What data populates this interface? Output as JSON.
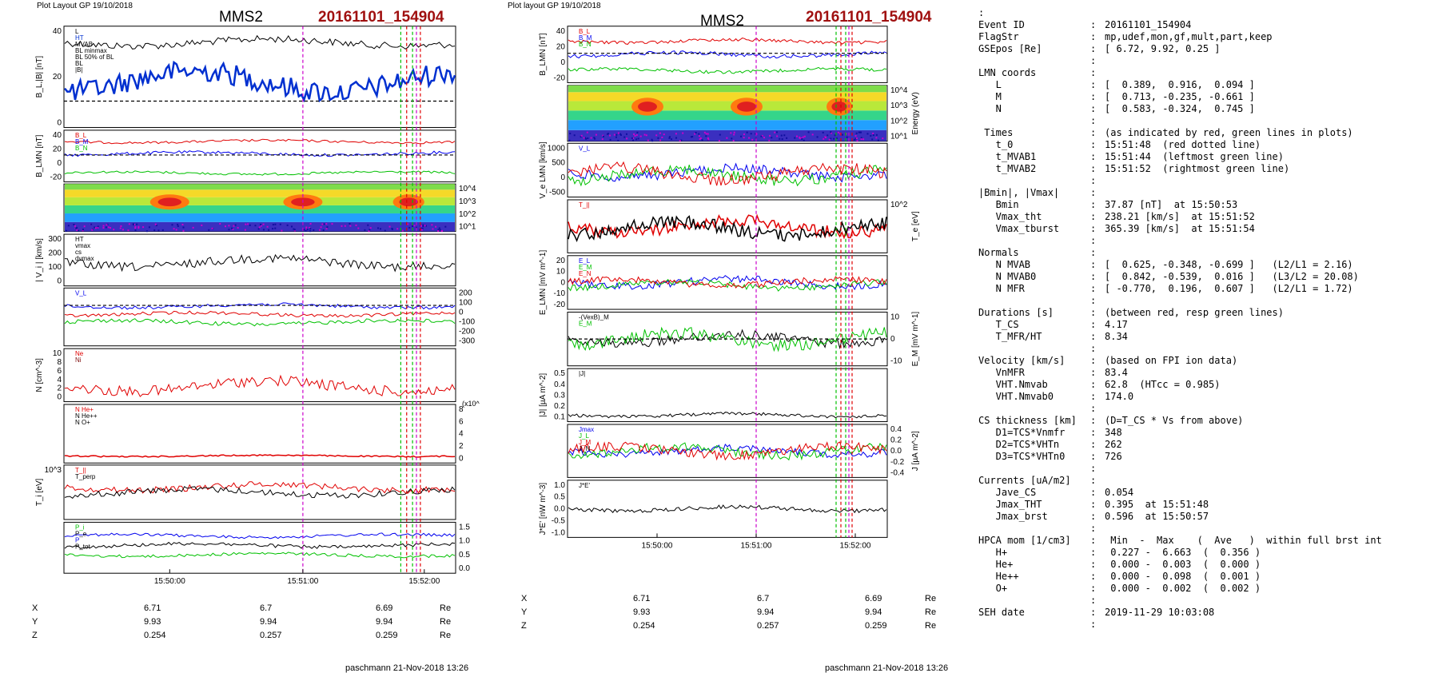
{
  "left": {
    "header_label": "Plot Layout GP 19/10/2018",
    "title": "MMS2",
    "event": "20161101_154904",
    "time_ticks": [
      "15:50:00",
      "15:51:00",
      "15:52:00"
    ],
    "panels": [
      {
        "ylabel": "B_L,|B| [nT]",
        "right": "",
        "ticks": [
          "40",
          "20",
          "0"
        ],
        "legend": [
          "L",
          "HT",
          "MVAB",
          "BL minmax",
          "BL 50% of BL",
          "BL",
          "|B|"
        ]
      },
      {
        "ylabel": "B_LMN [nT]",
        "right": "",
        "ticks": [
          "40",
          "20",
          "0",
          "-20"
        ],
        "legend": [
          "B_L",
          "B_M",
          "B_N"
        ]
      },
      {
        "ylabel": "",
        "right": "Energy (eV)",
        "ticks": [
          "10^4",
          "10^3",
          "10^2",
          "10^1"
        ],
        "legend": []
      },
      {
        "ylabel": "| V_i | [km/s]",
        "right": "",
        "ticks": [
          "300",
          "200",
          "100",
          "0"
        ],
        "legend": [
          "HT",
          "vmax",
          "cs",
          "dvmax"
        ]
      },
      {
        "ylabel": "",
        "right": "V_i LMN [km/s]",
        "ticks": [
          "200",
          "100",
          "0",
          "-100",
          "-200",
          "-300"
        ],
        "legend": [
          "V_L"
        ]
      },
      {
        "ylabel": "N [cm^-3]",
        "right": "",
        "ticks": [
          "10",
          "8",
          "6",
          "4",
          "2",
          "0"
        ],
        "legend": [
          "Ne",
          "Ni"
        ]
      },
      {
        "ylabel": "",
        "right": "N_i [cm^-3]",
        "ticks": [
          "8",
          "6",
          "4",
          "2",
          "0"
        ],
        "legend": [
          "N He+",
          "N He++",
          "N O+"
        ],
        "extra": "(x10^-2)"
      },
      {
        "ylabel": "T_i [eV]",
        "right": "",
        "ticks": [
          "10^3"
        ],
        "legend": [
          "T_||",
          "T_perp"
        ]
      },
      {
        "ylabel": "",
        "right": "P [nPa]",
        "ticks": [
          "1.5",
          "1.0",
          "0.5",
          "0.0"
        ],
        "legend": [
          "P_i",
          "P_e",
          "P",
          "P_tot"
        ]
      }
    ],
    "coords": {
      "labels": [
        "X",
        "Y",
        "Z"
      ],
      "values": [
        [
          "6.71",
          "6.7",
          "6.69"
        ],
        [
          "9.93",
          "9.94",
          "9.94"
        ],
        [
          "0.254",
          "0.257",
          "0.259"
        ]
      ],
      "unit": "Re"
    },
    "footer": "paschmann 21-Nov-2018 13:26"
  },
  "right_plot": {
    "header_label": "Plot layout GP 19/10/2018",
    "title": "MMS2",
    "event": "20161101_154904",
    "time_ticks": [
      "15:50:00",
      "15:51:00",
      "15:52:00"
    ],
    "panels": [
      {
        "ylabel": "B_LMN [nT]",
        "right": "",
        "ticks": [
          "40",
          "20",
          "0",
          "-20"
        ],
        "legend": [
          "B_L",
          "B_M",
          "B_N"
        ]
      },
      {
        "ylabel": "",
        "right": "Energy (eV)",
        "ticks": [
          "10^4",
          "10^3",
          "10^2",
          "10^1"
        ],
        "legend": []
      },
      {
        "ylabel": "V_e LMN [km/s]",
        "right": "",
        "ticks": [
          "1000",
          "500",
          "0",
          "-500"
        ],
        "legend": [
          "V_L"
        ]
      },
      {
        "ylabel": "",
        "right": "T_e [eV]",
        "ticks": [
          "10^2"
        ],
        "legend": [
          "T_||"
        ]
      },
      {
        "ylabel": "E_LMN [mV m^-1]",
        "right": "",
        "ticks": [
          "20",
          "10",
          "0",
          "-10",
          "-20"
        ],
        "legend": [
          "E_L",
          "E_M",
          "E_N"
        ]
      },
      {
        "ylabel": "",
        "right": "E_M [mV m^-1]",
        "ticks": [
          "10",
          "0",
          "-10"
        ],
        "legend": [
          "-(VexB)_M",
          "E_M"
        ]
      },
      {
        "ylabel": "|J| [µA m^-2]",
        "right": "",
        "ticks": [
          "0.5",
          "0.4",
          "0.3",
          "0.2",
          "0.1"
        ],
        "legend": [
          "|J|"
        ]
      },
      {
        "ylabel": "",
        "right": "J [µA m^-2]",
        "ticks": [
          "0.4",
          "0.2",
          "0.0",
          "-0.2",
          "-0.4"
        ],
        "legend": [
          "Jmax",
          "J_L",
          "J_M",
          "J_N"
        ]
      },
      {
        "ylabel": "J*E' [nW m^-3]",
        "right": "",
        "ticks": [
          "1.0",
          "0.5",
          "0.0",
          "-0.5",
          "-1.0"
        ],
        "legend": [
          "J*E'"
        ]
      }
    ],
    "coords": {
      "labels": [
        "X",
        "Y",
        "Z"
      ],
      "values": [
        [
          "6.71",
          "6.7",
          "6.69"
        ],
        [
          "9.93",
          "9.94",
          "9.94"
        ],
        [
          "0.254",
          "0.257",
          "0.259"
        ]
      ],
      "unit": "Re"
    },
    "footer": "paschmann 21-Nov-2018 13:26"
  },
  "info": [
    {
      "l": ":",
      "c": "",
      "v": ""
    },
    {
      "l": "Event ID",
      "c": ":",
      "v": "20161101_154904"
    },
    {
      "l": "FlagStr",
      "c": ":",
      "v": "mp,udef,mon,gf,mult,part,keep"
    },
    {
      "l": "GSEpos [Re]",
      "c": ":",
      "v": "[ 6.72, 9.92, 0.25 ]"
    },
    {
      "l": "",
      "c": ":",
      "v": ""
    },
    {
      "l": "LMN coords",
      "c": ":",
      "v": ""
    },
    {
      "l": "   L",
      "c": ":",
      "v": "[  0.389,  0.916,  0.094 ]"
    },
    {
      "l": "   M",
      "c": ":",
      "v": "[  0.713, -0.235, -0.661 ]"
    },
    {
      "l": "   N",
      "c": ":",
      "v": "[  0.583, -0.324,  0.745 ]"
    },
    {
      "l": "",
      "c": ":",
      "v": ""
    },
    {
      "l": " Times",
      "c": ":",
      "v": "(as indicated by red, green lines in plots)"
    },
    {
      "l": "   t_0",
      "c": ":",
      "v": "15:51:48  (red dotted line)"
    },
    {
      "l": "   t_MVAB1",
      "c": ":",
      "v": "15:51:44  (leftmost green line)"
    },
    {
      "l": "   t_MVAB2",
      "c": ":",
      "v": "15:51:52  (rightmost green line)"
    },
    {
      "l": "",
      "c": ":",
      "v": ""
    },
    {
      "l": "|Bmin|, |Vmax|",
      "c": ":",
      "v": ""
    },
    {
      "l": "   Bmin",
      "c": ":",
      "v": "37.87 [nT]  at 15:50:53"
    },
    {
      "l": "   Vmax_tht",
      "c": ":",
      "v": "238.21 [km/s]  at 15:51:52"
    },
    {
      "l": "   Vmax_tburst",
      "c": ":",
      "v": "365.39 [km/s]  at 15:51:54"
    },
    {
      "l": "",
      "c": ":",
      "v": ""
    },
    {
      "l": "Normals",
      "c": ":",
      "v": ""
    },
    {
      "l": "   N MVAB",
      "c": ":",
      "v": "[  0.625, -0.348, -0.699 ]   (L2/L1 = 2.16)"
    },
    {
      "l": "   N MVAB0",
      "c": ":",
      "v": "[  0.842, -0.539,  0.016 ]   (L3/L2 = 20.08)"
    },
    {
      "l": "   N MFR",
      "c": ":",
      "v": "[ -0.770,  0.196,  0.607 ]   (L2/L1 = 1.72)"
    },
    {
      "l": "",
      "c": ":",
      "v": ""
    },
    {
      "l": "Durations [s]",
      "c": ":",
      "v": "(between red, resp green lines)"
    },
    {
      "l": "   T_CS",
      "c": ":",
      "v": "4.17"
    },
    {
      "l": "   T_MFR/HT",
      "c": ":",
      "v": "8.34"
    },
    {
      "l": "",
      "c": ":",
      "v": ""
    },
    {
      "l": "Velocity [km/s]",
      "c": ":",
      "v": "(based on FPI ion data)"
    },
    {
      "l": "   VnMFR",
      "c": ":",
      "v": "83.4"
    },
    {
      "l": "   VHT.Nmvab",
      "c": ":",
      "v": "62.8  (HTcc = 0.985)"
    },
    {
      "l": "   VHT.Nmvab0",
      "c": ":",
      "v": "174.0"
    },
    {
      "l": "",
      "c": ":",
      "v": ""
    },
    {
      "l": "CS thickness [km]",
      "c": ":",
      "v": "(D=T_CS * Vs from above)"
    },
    {
      "l": "   D1=TCS*Vnmfr",
      "c": ":",
      "v": "348"
    },
    {
      "l": "   D2=TCS*VHTn",
      "c": ":",
      "v": "262"
    },
    {
      "l": "   D3=TCS*VHTn0",
      "c": ":",
      "v": "726"
    },
    {
      "l": "",
      "c": ":",
      "v": ""
    },
    {
      "l": "Currents [uA/m2]",
      "c": ":",
      "v": ""
    },
    {
      "l": "   Jave_CS",
      "c": ":",
      "v": "0.054"
    },
    {
      "l": "   Jmax_THT",
      "c": ":",
      "v": "0.395  at 15:51:48"
    },
    {
      "l": "   Jmax_brst",
      "c": ":",
      "v": "0.596  at 15:50:57"
    },
    {
      "l": "",
      "c": ":",
      "v": ""
    },
    {
      "l": "HPCA mom [1/cm3]",
      "c": ":",
      "v": " Min  -  Max    (  Ave   )  within full brst int"
    },
    {
      "l": "   H+",
      "c": ":",
      "v": " 0.227 -  6.663  (  0.356 )"
    },
    {
      "l": "   He+",
      "c": ":",
      "v": " 0.000 -  0.003  (  0.000 )"
    },
    {
      "l": "   He++",
      "c": ":",
      "v": " 0.000 -  0.098  (  0.001 )"
    },
    {
      "l": "   O+",
      "c": ":",
      "v": " 0.000 -  0.002  (  0.002 )"
    },
    {
      "l": "",
      "c": ":",
      "v": ""
    },
    {
      "l": "SEH date",
      "c": ":",
      "v": "2019-11-29 10:03:08"
    },
    {
      "l": "",
      "c": ":",
      "v": ""
    }
  ],
  "chart_data": [
    {
      "type": "line",
      "title": "MMS2 20161101_154904",
      "x": [
        "15:50:00",
        "15:51:00",
        "15:52:00"
      ],
      "series": [
        {
          "name": "|B|",
          "values": [
            32,
            28,
            44
          ]
        },
        {
          "name": "BL",
          "values": [
            18,
            16,
            14
          ]
        }
      ],
      "ylabel": "B_L,|B| [nT]",
      "ylim": [
        -10,
        45
      ]
    },
    {
      "type": "line",
      "title": "MMS2 20161101_154904",
      "x": [
        "15:50:00",
        "15:51:00",
        "15:52:00"
      ],
      "series": [
        {
          "name": "J*E'",
          "values": [
            0.0,
            0.0,
            0.0
          ]
        }
      ],
      "ylabel": "J*E' [nW m^-3]",
      "ylim": [
        -1.0,
        1.0
      ]
    }
  ],
  "colors": {
    "event": "#a01010",
    "red": "#e00000",
    "blue": "#0000ee",
    "green": "#00c000",
    "magenta": "#cc00cc"
  }
}
